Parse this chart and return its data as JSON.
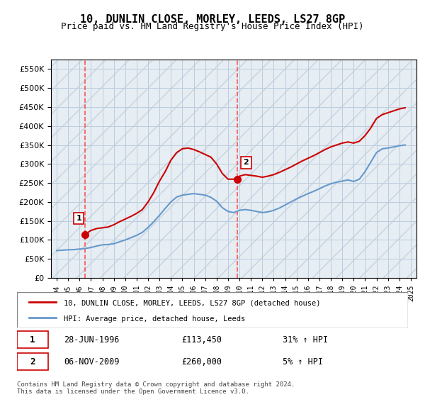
{
  "title": "10, DUNLIN CLOSE, MORLEY, LEEDS, LS27 8GP",
  "subtitle": "Price paid vs. HM Land Registry's House Price Index (HPI)",
  "property_label": "10, DUNLIN CLOSE, MORLEY, LEEDS, LS27 8GP (detached house)",
  "hpi_label": "HPI: Average price, detached house, Leeds",
  "legend_entries": [
    {
      "label": "1",
      "date": "28-JUN-1996",
      "price": "£113,450",
      "hpi": "31% ↑ HPI"
    },
    {
      "label": "2",
      "date": "06-NOV-2009",
      "price": "£260,000",
      "hpi": "5% ↑ HPI"
    }
  ],
  "footnote": "Contains HM Land Registry data © Crown copyright and database right 2024.\nThis data is licensed under the Open Government Licence v3.0.",
  "sale1_year": 1996.49,
  "sale2_year": 2009.84,
  "sale1_price": 113450,
  "sale2_price": 260000,
  "line_color_property": "#cc0000",
  "line_color_hpi": "#6699cc",
  "vline_color": "#ff4444",
  "dot_color": "#cc0000",
  "ylim": [
    0,
    575000
  ],
  "yticks": [
    0,
    50000,
    100000,
    150000,
    200000,
    250000,
    300000,
    350000,
    400000,
    450000,
    500000,
    550000
  ],
  "xlim_start": 1993.5,
  "xlim_end": 2025.5,
  "xticks": [
    1994,
    1995,
    1996,
    1997,
    1998,
    1999,
    2000,
    2001,
    2002,
    2003,
    2004,
    2005,
    2006,
    2007,
    2008,
    2009,
    2010,
    2011,
    2012,
    2013,
    2014,
    2015,
    2016,
    2017,
    2018,
    2019,
    2020,
    2021,
    2022,
    2023,
    2024,
    2025
  ],
  "property_hpi_data": {
    "years": [
      1996.49,
      1996.5,
      1997,
      1997.5,
      1998,
      1998.5,
      1999,
      1999.5,
      2000,
      2000.5,
      2001,
      2001.5,
      2002,
      2002.5,
      2003,
      2003.5,
      2004,
      2004.5,
      2005,
      2005.5,
      2006,
      2006.5,
      2007,
      2007.5,
      2008,
      2008.5,
      2009,
      2009.84,
      2010,
      2010.5,
      2011,
      2011.5,
      2012,
      2012.5,
      2013,
      2013.5,
      2014,
      2014.5,
      2015,
      2015.5,
      2016,
      2016.5,
      2017,
      2017.5,
      2018,
      2018.5,
      2019,
      2019.5,
      2020,
      2020.5,
      2021,
      2021.5,
      2022,
      2022.5,
      2023,
      2023.5,
      2024,
      2024.5
    ],
    "values": [
      113450,
      115000,
      125000,
      130000,
      132000,
      134000,
      140000,
      148000,
      155000,
      162000,
      170000,
      180000,
      200000,
      225000,
      255000,
      280000,
      310000,
      330000,
      340000,
      342000,
      338000,
      332000,
      325000,
      318000,
      300000,
      275000,
      260000,
      260000,
      268000,
      272000,
      270000,
      268000,
      265000,
      268000,
      272000,
      278000,
      285000,
      292000,
      300000,
      308000,
      315000,
      322000,
      330000,
      338000,
      345000,
      350000,
      355000,
      358000,
      355000,
      360000,
      375000,
      395000,
      420000,
      430000,
      435000,
      440000,
      445000,
      448000
    ]
  },
  "hpi_data": {
    "years": [
      1994,
      1994.5,
      1995,
      1995.5,
      1996,
      1996.5,
      1997,
      1997.5,
      1998,
      1998.5,
      1999,
      1999.5,
      2000,
      2000.5,
      2001,
      2001.5,
      2002,
      2002.5,
      2003,
      2003.5,
      2004,
      2004.5,
      2005,
      2005.5,
      2006,
      2006.5,
      2007,
      2007.5,
      2008,
      2008.5,
      2009,
      2009.5,
      2010,
      2010.5,
      2011,
      2011.5,
      2012,
      2012.5,
      2013,
      2013.5,
      2014,
      2014.5,
      2015,
      2015.5,
      2016,
      2016.5,
      2017,
      2017.5,
      2018,
      2018.5,
      2019,
      2019.5,
      2020,
      2020.5,
      2021,
      2021.5,
      2022,
      2022.5,
      2023,
      2023.5,
      2024,
      2024.5
    ],
    "values": [
      72000,
      73000,
      74000,
      74500,
      76000,
      77500,
      80000,
      84000,
      87000,
      88000,
      90000,
      95000,
      100000,
      106000,
      112000,
      120000,
      133000,
      148000,
      165000,
      183000,
      200000,
      213000,
      218000,
      220000,
      222000,
      220000,
      218000,
      212000,
      202000,
      185000,
      175000,
      172000,
      178000,
      180000,
      178000,
      175000,
      172000,
      174000,
      178000,
      184000,
      192000,
      200000,
      208000,
      215000,
      222000,
      228000,
      235000,
      242000,
      248000,
      252000,
      255000,
      258000,
      254000,
      260000,
      280000,
      305000,
      330000,
      340000,
      342000,
      345000,
      348000,
      350000
    ]
  },
  "bg_hatch_color": "#e8e8f0",
  "grid_color": "#bbccdd",
  "sale1_marker_year": 1996.49,
  "sale2_marker_year": 2009.84
}
